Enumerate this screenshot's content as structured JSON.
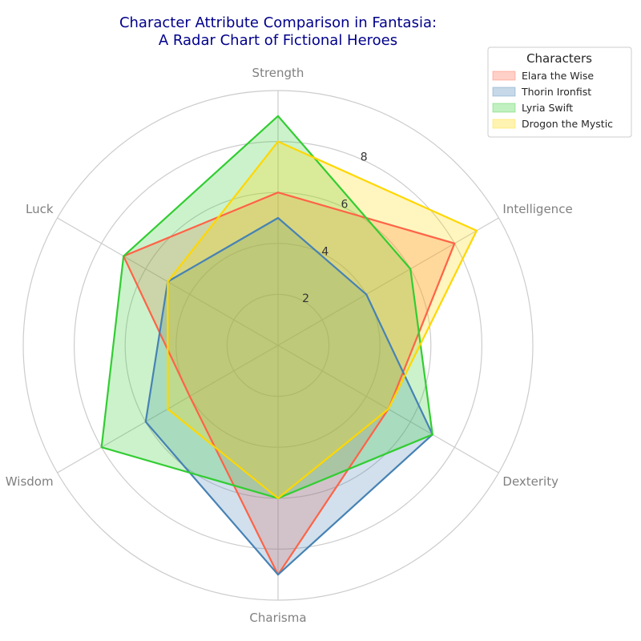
{
  "chart_data": {
    "type": "radar",
    "title_lines": [
      "Character Attribute Comparison in Fantasia:",
      "A Radar Chart of Fictional Heroes"
    ],
    "axes": [
      "Strength",
      "Intelligence",
      "Dexterity",
      "Charisma",
      "Wisdom",
      "Luck"
    ],
    "rlim": [
      0,
      10
    ],
    "rticks": [
      2,
      4,
      6,
      8
    ],
    "grid": true,
    "legend": {
      "title": "Characters",
      "placement": "top-right"
    },
    "series": [
      {
        "name": "Elara the Wise",
        "values": [
          6,
          8,
          5,
          9,
          4,
          7
        ],
        "color": "#ff6347"
      },
      {
        "name": "Thorin Ironfist",
        "values": [
          5,
          4,
          7,
          9,
          6,
          5
        ],
        "color": "#4682b4"
      },
      {
        "name": "Lyria Swift",
        "values": [
          9,
          6,
          7,
          6,
          8,
          7
        ],
        "color": "#32cd32"
      },
      {
        "name": "Drogon the Mystic",
        "values": [
          8,
          9,
          5,
          6,
          5,
          5
        ],
        "color": "#ffd700"
      }
    ]
  }
}
